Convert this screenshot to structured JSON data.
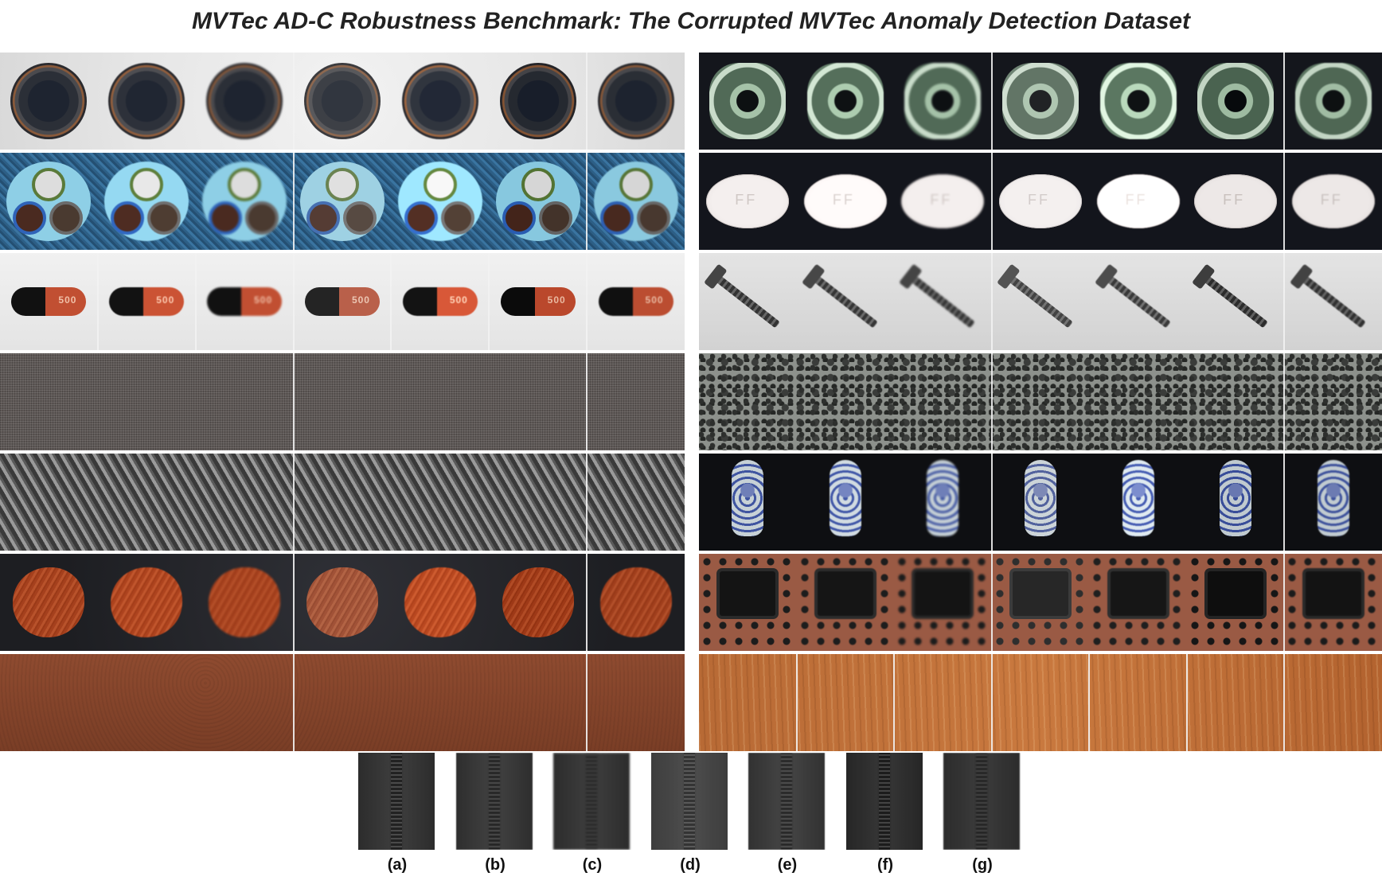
{
  "title": "MVTec AD-C Robustness Benchmark: The Corrupted MVTec Anomaly Detection Dataset",
  "colors": {
    "background": "#ffffff",
    "title_text": "#222222"
  },
  "left_column_rows": [
    "bottle",
    "cable",
    "capsule",
    "carpet",
    "grid",
    "hazelnut",
    "leather"
  ],
  "right_column_rows": [
    "metal-nut",
    "pill",
    "screw",
    "tile",
    "toothbrush",
    "transistor",
    "wood"
  ],
  "bottom_row": [
    "zipper"
  ],
  "pill_imprint": "FF",
  "capsule_imprint": "500",
  "column_labels": [
    "(a)",
    "(b)",
    "(c)",
    "(d)",
    "(e)",
    "(f)",
    "(g)"
  ]
}
